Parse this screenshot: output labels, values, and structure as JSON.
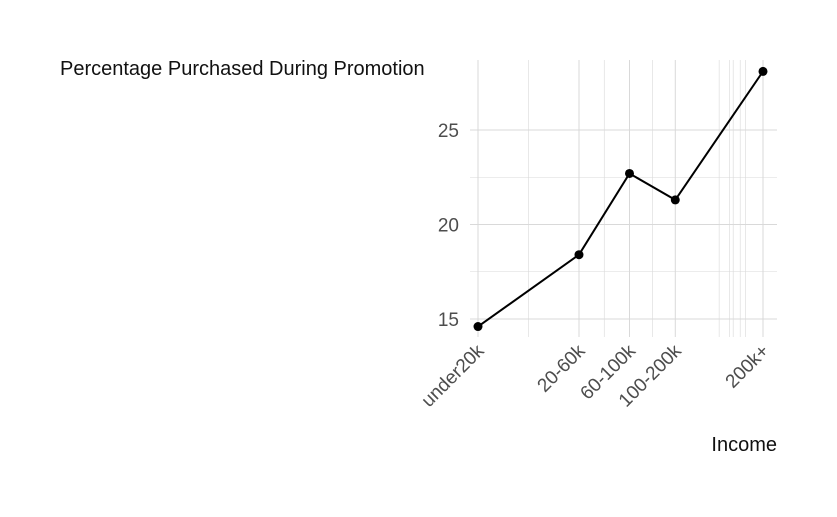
{
  "chart_data": {
    "type": "line",
    "title": "",
    "xlabel": "Income",
    "ylabel": "Percentage Purchased During Promotion",
    "categories": [
      "under20k",
      "20-60k",
      "60-100k",
      "100-200k",
      "200k+"
    ],
    "x_positions": [
      10,
      40,
      80,
      150,
      500
    ],
    "values": [
      14.6,
      18.4,
      22.7,
      21.3,
      28.1
    ],
    "y_ticks": [
      15,
      20,
      25
    ],
    "ylim": [
      14.1,
      28.6
    ],
    "x_scale": "log",
    "grid": true,
    "legend": "none",
    "colors": {
      "line": "#000000",
      "grid": "#d9d9d9",
      "tick_text": "#4d4d4d"
    }
  }
}
